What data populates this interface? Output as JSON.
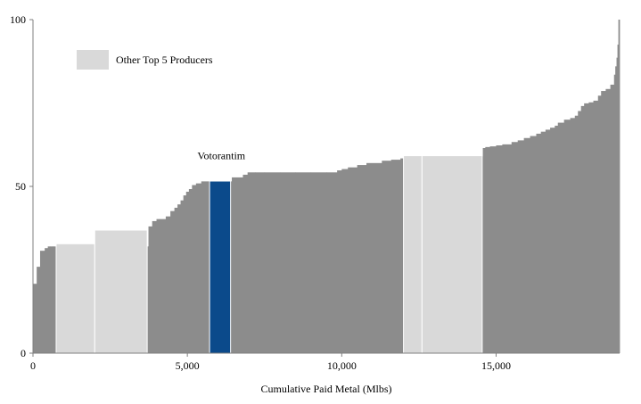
{
  "chart_data": {
    "type": "area",
    "subtype": "cost-curve",
    "title": "",
    "xlabel": "Cumulative Paid Metal (Mlbs)",
    "ylabel": "",
    "xlim": [
      0,
      19000
    ],
    "ylim": [
      0,
      100
    ],
    "x_ticks": [
      0,
      5000,
      10000,
      15000
    ],
    "x_tick_labels": [
      "0",
      "5,000",
      "10,000",
      "15,000"
    ],
    "y_ticks": [
      0,
      50,
      100
    ],
    "y_tick_labels": [
      "0",
      "50",
      "100"
    ],
    "grid": false,
    "legend": {
      "position": "top-left",
      "entries": [
        {
          "label": "Other Top 5 Producers",
          "color": "#d9d9d9"
        }
      ]
    },
    "annotations": [
      {
        "text": "Votorantim",
        "x": 6100,
        "y": 59
      }
    ],
    "colors": {
      "other": "#8c8c8c",
      "top5": "#d9d9d9",
      "highlight": "#0b4a8b",
      "axis": "#7f7f7f"
    },
    "series": [
      {
        "category": "other",
        "steps": [
          [
            0,
            20.8
          ],
          [
            120,
            25.9
          ],
          [
            230,
            30.7
          ],
          [
            380,
            31.5
          ],
          [
            480,
            32.0
          ],
          [
            560,
            32.0
          ],
          [
            640,
            32.0
          ],
          [
            3740,
            38.0
          ],
          [
            3860,
            39.6
          ],
          [
            4000,
            40.2
          ],
          [
            4100,
            40.2
          ],
          [
            4300,
            41.0
          ],
          [
            4450,
            42.6
          ],
          [
            4580,
            43.6
          ],
          [
            4680,
            44.6
          ],
          [
            4780,
            45.8
          ],
          [
            4870,
            47.3
          ],
          [
            4960,
            48.4
          ],
          [
            5050,
            49.2
          ],
          [
            5150,
            50.4
          ],
          [
            5280,
            50.9
          ],
          [
            5450,
            51.5
          ],
          [
            6440,
            52.7
          ],
          [
            6800,
            53.5
          ],
          [
            6950,
            54.2
          ],
          [
            7200,
            54.2
          ],
          [
            7500,
            54.2
          ],
          [
            8000,
            54.2
          ],
          [
            8500,
            54.2
          ],
          [
            9000,
            54.2
          ],
          [
            9500,
            54.2
          ],
          [
            9850,
            54.8
          ],
          [
            10000,
            55.2
          ],
          [
            10200,
            55.7
          ],
          [
            10500,
            56.4
          ],
          [
            10800,
            57.0
          ],
          [
            11300,
            57.7
          ],
          [
            11600,
            58.0
          ],
          [
            11900,
            58.4
          ],
          [
            12100,
            59.0
          ],
          [
            14570,
            61.5
          ],
          [
            14650,
            61.8
          ],
          [
            14800,
            62.0
          ],
          [
            15000,
            62.3
          ],
          [
            15200,
            62.6
          ],
          [
            15500,
            63.3
          ],
          [
            15700,
            63.8
          ],
          [
            15900,
            64.5
          ],
          [
            16100,
            65.1
          ],
          [
            16300,
            65.8
          ],
          [
            16450,
            66.4
          ],
          [
            16600,
            67.0
          ],
          [
            16750,
            67.6
          ],
          [
            16900,
            68.2
          ],
          [
            17000,
            69.1
          ],
          [
            17200,
            70.0
          ],
          [
            17400,
            70.5
          ],
          [
            17550,
            71.2
          ],
          [
            17650,
            72.6
          ],
          [
            17750,
            74.1
          ],
          [
            17850,
            74.9
          ],
          [
            18000,
            75.2
          ],
          [
            18150,
            75.7
          ],
          [
            18300,
            77.2
          ],
          [
            18400,
            78.6
          ],
          [
            18550,
            79.2
          ],
          [
            18700,
            80.5
          ],
          [
            18820,
            83.5
          ],
          [
            18860,
            86.0
          ],
          [
            18900,
            88.6
          ],
          [
            18930,
            92.5
          ],
          [
            18960,
            100
          ],
          [
            19000,
            100
          ]
        ]
      },
      {
        "category": "top5",
        "blocks": [
          {
            "x0": 750,
            "x1": 2000,
            "value": 32.8
          },
          {
            "x0": 2000,
            "x1": 3700,
            "value": 36.9
          },
          {
            "x0": 12000,
            "x1": 12600,
            "value": 59.2
          },
          {
            "x0": 12600,
            "x1": 14550,
            "value": 59.2
          }
        ]
      },
      {
        "name": "Votorantim",
        "category": "highlight",
        "blocks": [
          {
            "x0": 5720,
            "x1": 6400,
            "value": 51.6
          }
        ]
      }
    ]
  }
}
